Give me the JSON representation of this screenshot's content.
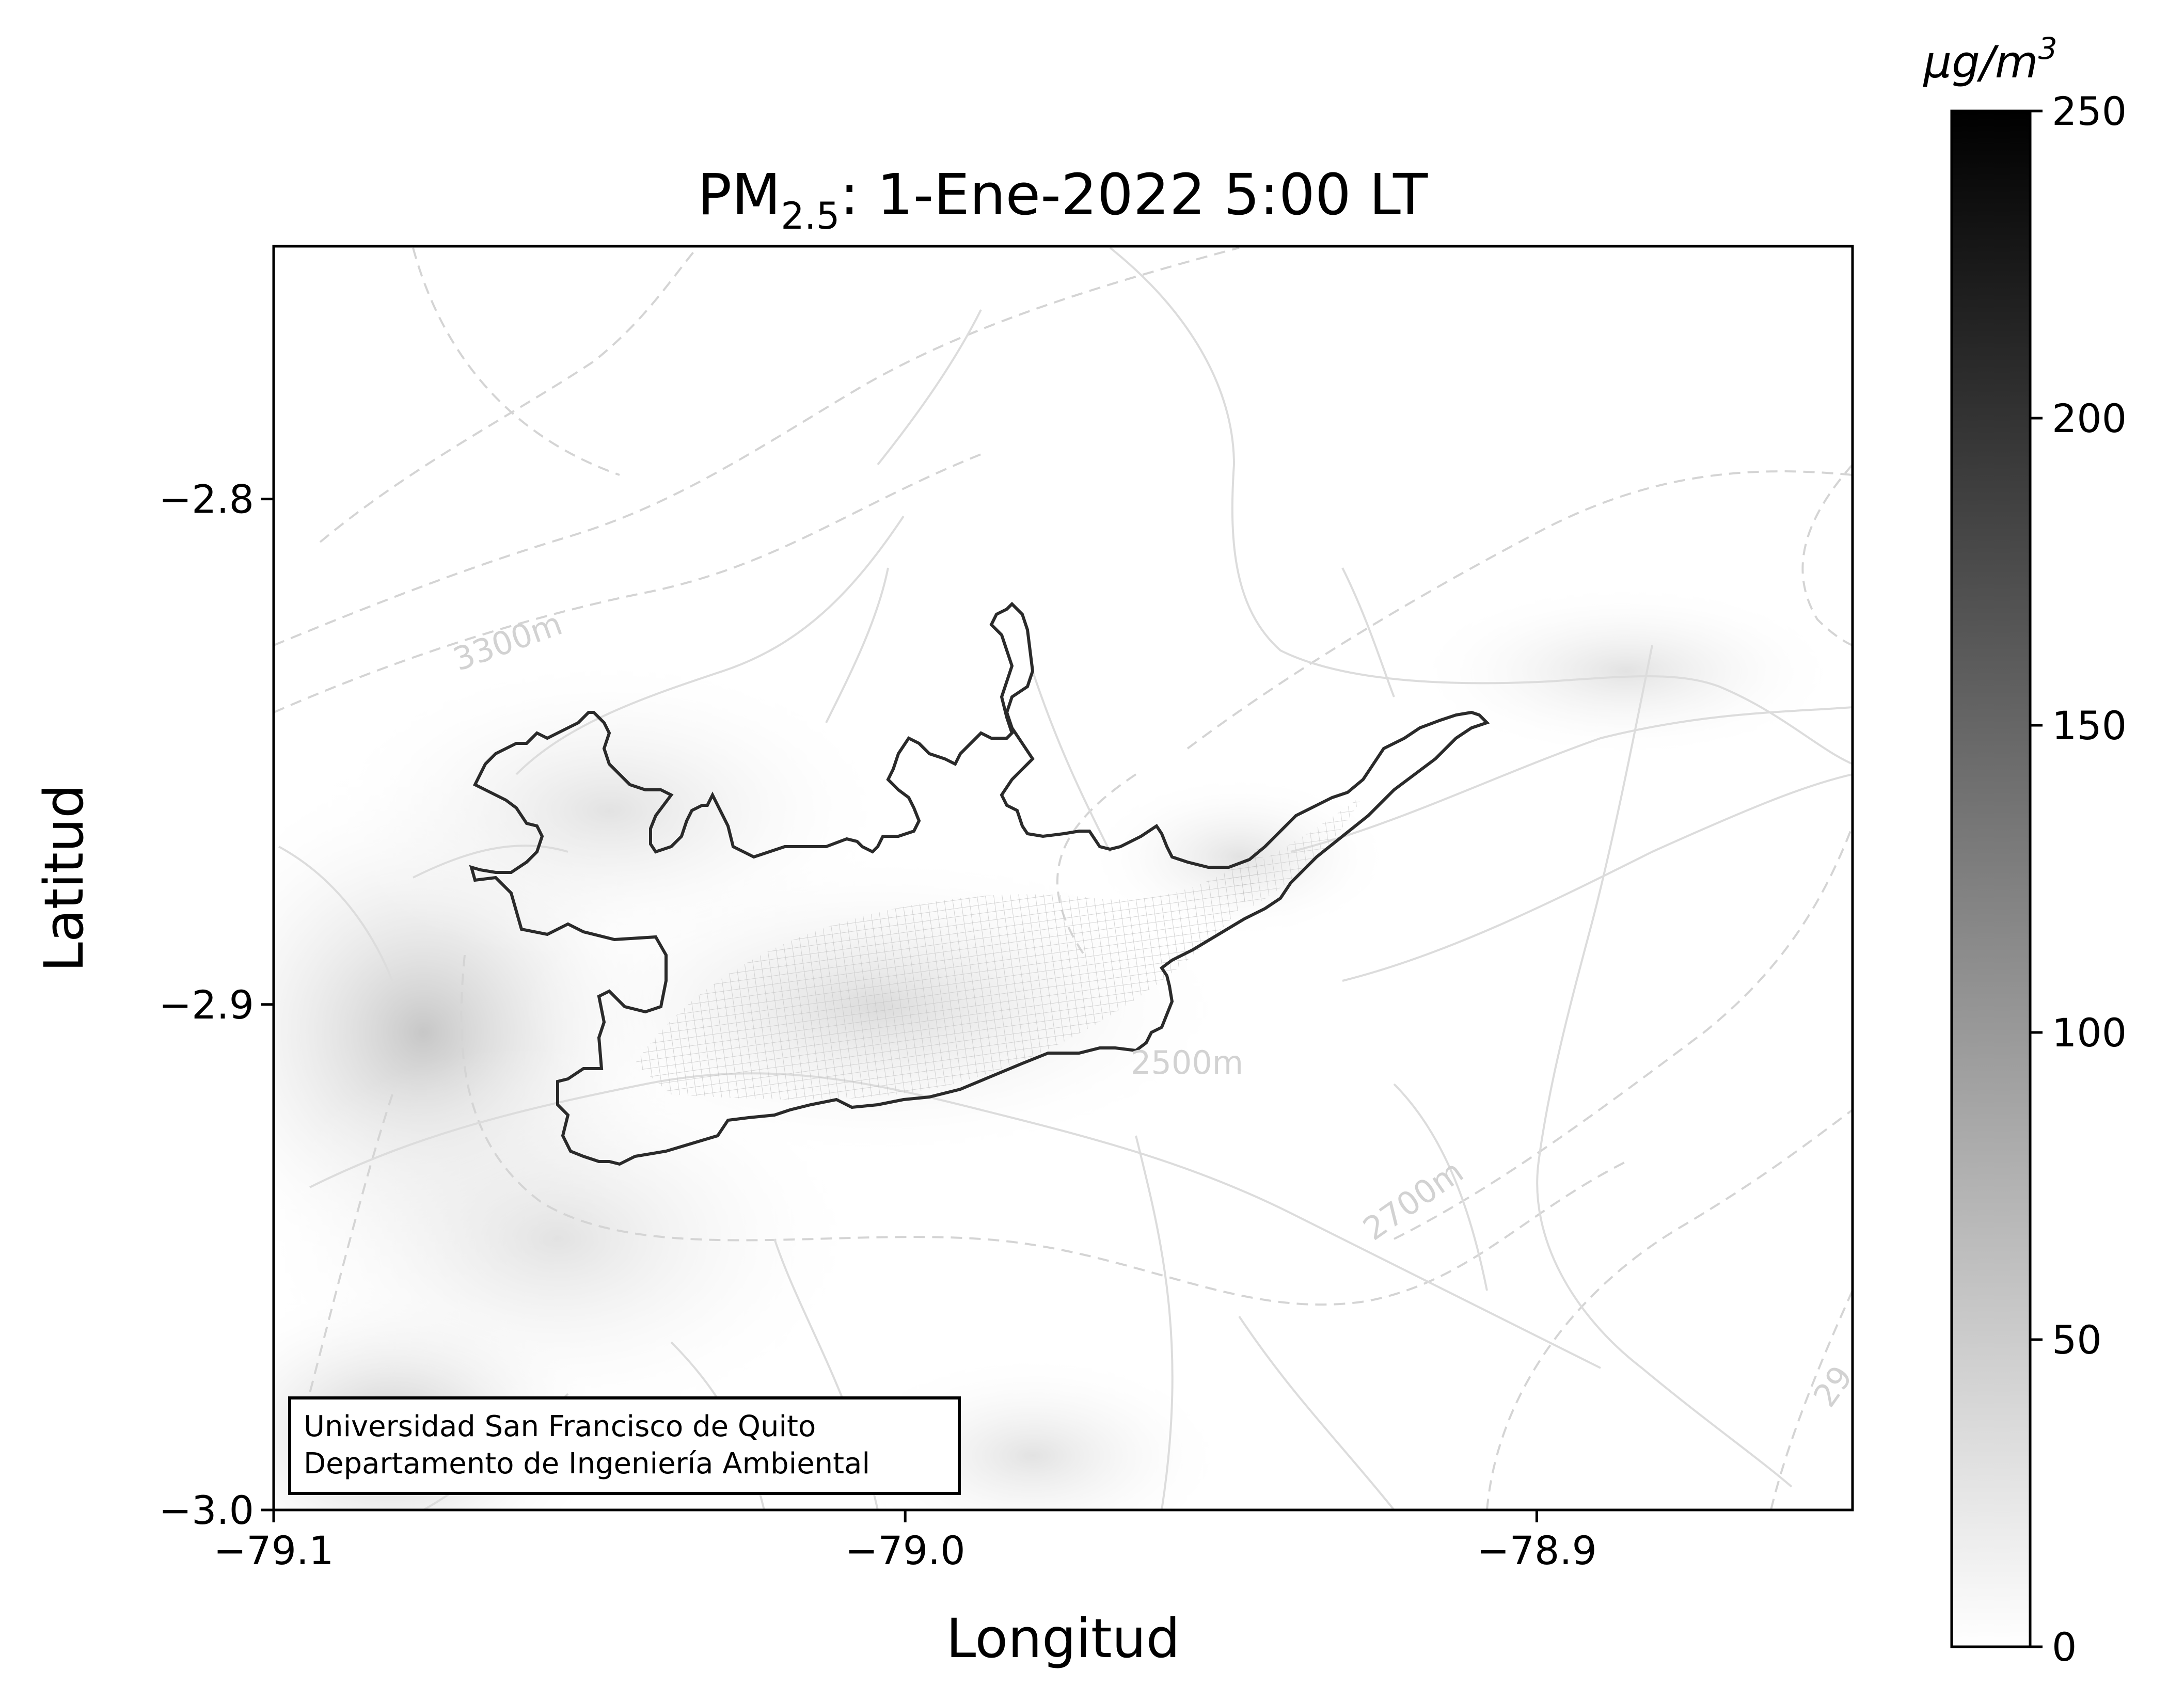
{
  "title": {
    "prefix": "PM",
    "subscript": "2.5",
    "suffix": ": 1-Ene-2022 5:00 LT"
  },
  "axes": {
    "xlabel": "Longitud",
    "ylabel": "Latitud",
    "xlim": [
      -79.1,
      -78.85
    ],
    "ylim": [
      -3.0,
      -2.75
    ],
    "xticks": [
      {
        "value": -79.1,
        "label": "−79.1"
      },
      {
        "value": -79.0,
        "label": "−79.0"
      },
      {
        "value": -78.9,
        "label": "−78.9"
      }
    ],
    "yticks": [
      {
        "value": -2.8,
        "label": "−2.8"
      },
      {
        "value": -2.9,
        "label": "−2.9"
      },
      {
        "value": -3.0,
        "label": "−3.0"
      }
    ]
  },
  "contour_labels": [
    {
      "text": "3300m"
    },
    {
      "text": "2500m"
    },
    {
      "text": "2700m"
    },
    {
      "text": "29"
    }
  ],
  "credit": {
    "line1": "Universidad San Francisco de Quito",
    "line2": "Departamento de Ingeniería Ambiental"
  },
  "colorbar": {
    "unit_base": "μg/m",
    "unit_exp": "3",
    "min": 0,
    "max": 250,
    "cmap": [
      "#ffffff",
      "#000000"
    ],
    "ticks": [
      {
        "value": 0,
        "label": "0"
      },
      {
        "value": 50,
        "label": "50"
      },
      {
        "value": 100,
        "label": "100"
      },
      {
        "value": 150,
        "label": "150"
      },
      {
        "value": 200,
        "label": "200"
      },
      {
        "value": 250,
        "label": "250"
      }
    ]
  }
}
